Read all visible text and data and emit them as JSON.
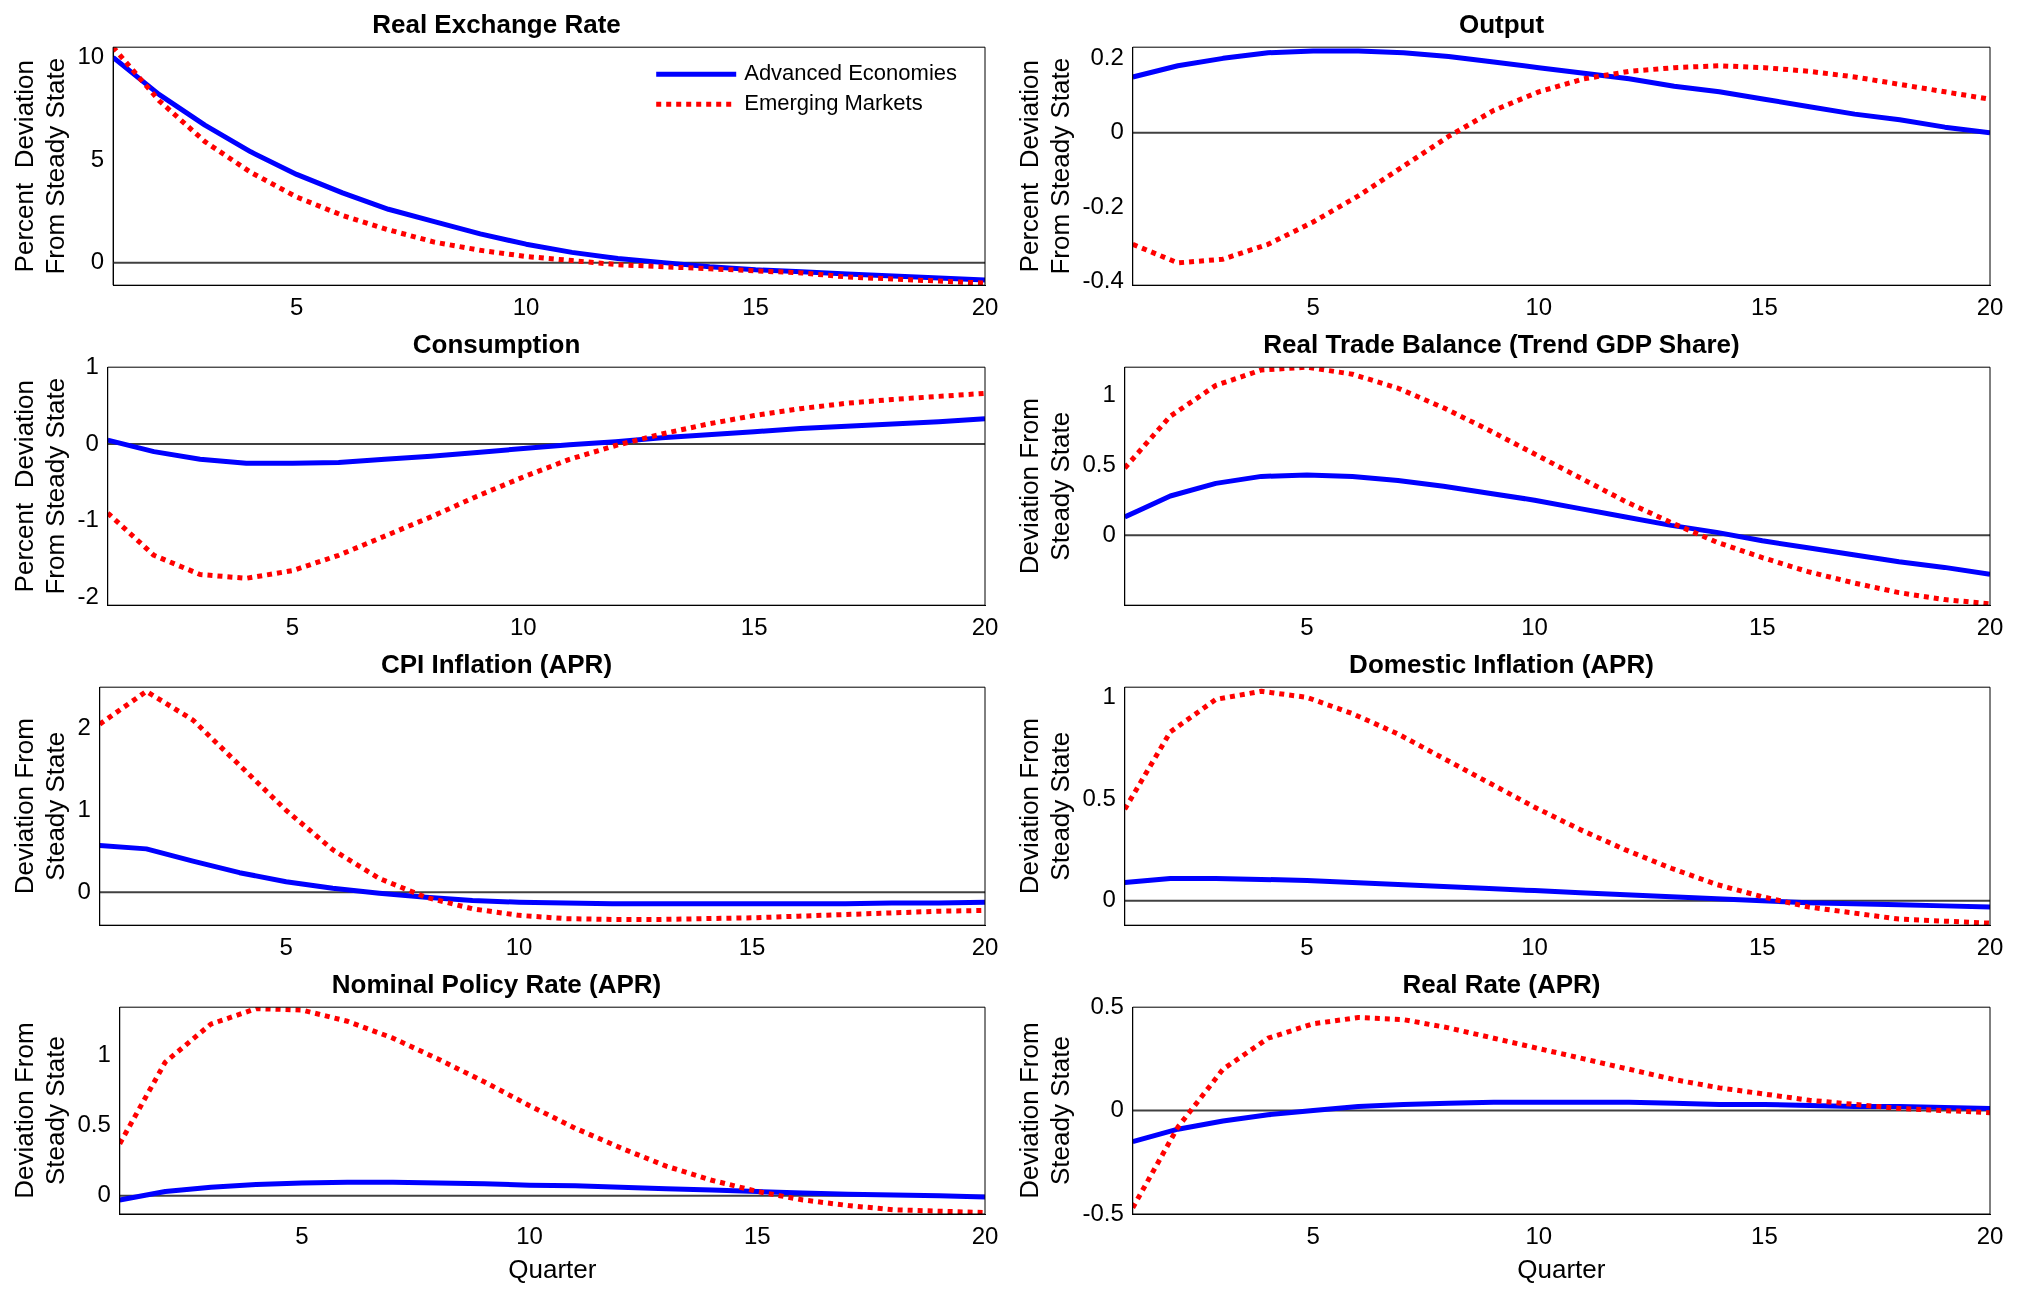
{
  "chart_data": [
    {
      "type": "line",
      "title": "Real Exchange Rate",
      "ylabel": "Percent  Deviation\nFrom Steady State",
      "x": [
        1,
        2,
        3,
        4,
        5,
        6,
        7,
        8,
        9,
        10,
        11,
        12,
        13,
        14,
        15,
        16,
        17,
        18,
        19,
        20
      ],
      "xlim": [
        1,
        20
      ],
      "xticks": [
        5,
        10,
        15,
        20
      ],
      "ylim": [
        -1.1,
        10.5
      ],
      "yticks": [
        0,
        5,
        10
      ],
      "legend": "top right",
      "ref_lines": [
        {
          "axis": "y",
          "value": 0,
          "color": "#404040"
        }
      ],
      "series": [
        {
          "name": "Advanced Economies",
          "color": "#0000ff",
          "line_style": "solid",
          "values": [
            10,
            8.2,
            6.7,
            5.4,
            4.3,
            3.4,
            2.6,
            2.0,
            1.4,
            0.9,
            0.5,
            0.2,
            0,
            -0.2,
            -0.35,
            -0.45,
            -0.55,
            -0.65,
            -0.75,
            -0.85
          ]
        },
        {
          "name": "Emerging Markets",
          "color": "#ff0000",
          "line_style": "dotted",
          "values": [
            10.5,
            7.9,
            5.9,
            4.4,
            3.2,
            2.3,
            1.6,
            1.0,
            0.6,
            0.3,
            0.1,
            -0.1,
            -0.2,
            -0.3,
            -0.4,
            -0.5,
            -0.7,
            -0.8,
            -0.9,
            -1.0
          ]
        }
      ]
    },
    {
      "type": "line",
      "title": "Output",
      "ylabel": "Percent  Deviation\nFrom Steady State",
      "x": [
        1,
        2,
        3,
        4,
        5,
        6,
        7,
        8,
        9,
        10,
        11,
        12,
        13,
        14,
        15,
        16,
        17,
        18,
        19,
        20
      ],
      "xlim": [
        1,
        20
      ],
      "xticks": [
        5,
        10,
        15,
        20
      ],
      "ylim": [
        -0.41,
        0.23
      ],
      "yticks": [
        -0.4,
        -0.2,
        0,
        0.2
      ],
      "ref_lines": [
        {
          "axis": "y",
          "value": 0,
          "color": "#404040"
        }
      ],
      "series": [
        {
          "color": "#0000ff",
          "line_style": "solid",
          "values": [
            0.15,
            0.18,
            0.2,
            0.215,
            0.22,
            0.22,
            0.215,
            0.205,
            0.19,
            0.175,
            0.16,
            0.145,
            0.125,
            0.11,
            0.09,
            0.07,
            0.05,
            0.035,
            0.015,
            0
          ]
        },
        {
          "color": "#ff0000",
          "line_style": "dotted",
          "values": [
            -0.3,
            -0.35,
            -0.34,
            -0.3,
            -0.24,
            -0.17,
            -0.09,
            -0.01,
            0.06,
            0.11,
            0.145,
            0.165,
            0.175,
            0.18,
            0.175,
            0.165,
            0.15,
            0.13,
            0.11,
            0.09
          ]
        }
      ]
    },
    {
      "type": "line",
      "title": "Consumption",
      "ylabel": "Percent  Deviation\nFrom Steady State",
      "x": [
        1,
        2,
        3,
        4,
        5,
        6,
        7,
        8,
        9,
        10,
        11,
        12,
        13,
        14,
        15,
        16,
        17,
        18,
        19,
        20
      ],
      "xlim": [
        1,
        20
      ],
      "xticks": [
        5,
        10,
        15,
        20
      ],
      "ylim": [
        -2.1,
        1
      ],
      "yticks": [
        -2,
        -1,
        0,
        1
      ],
      "ref_lines": [
        {
          "axis": "y",
          "value": 0,
          "color": "#404040"
        }
      ],
      "series": [
        {
          "color": "#0000ff",
          "line_style": "solid",
          "values": [
            0.05,
            -0.1,
            -0.2,
            -0.25,
            -0.25,
            -0.24,
            -0.2,
            -0.16,
            -0.11,
            -0.06,
            -0.01,
            0.03,
            0.08,
            0.12,
            0.16,
            0.2,
            0.23,
            0.26,
            0.29,
            0.33
          ]
        },
        {
          "color": "#ff0000",
          "line_style": "dotted",
          "values": [
            -0.9,
            -1.45,
            -1.7,
            -1.75,
            -1.65,
            -1.45,
            -1.2,
            -0.95,
            -0.68,
            -0.43,
            -0.2,
            -0.02,
            0.13,
            0.26,
            0.37,
            0.46,
            0.53,
            0.58,
            0.62,
            0.66
          ]
        }
      ]
    },
    {
      "type": "line",
      "title": "Real Trade Balance (Trend GDP Share)",
      "ylabel": "Deviation From\nSteady State",
      "x": [
        1,
        2,
        3,
        4,
        5,
        6,
        7,
        8,
        9,
        10,
        11,
        12,
        13,
        14,
        15,
        16,
        17,
        18,
        19,
        20
      ],
      "xlim": [
        1,
        20
      ],
      "xticks": [
        5,
        10,
        15,
        20
      ],
      "ylim": [
        -0.5,
        1.2
      ],
      "yticks": [
        0,
        0.5,
        1
      ],
      "ref_lines": [
        {
          "axis": "y",
          "value": 0,
          "color": "#404040"
        }
      ],
      "series": [
        {
          "color": "#0000ff",
          "line_style": "solid",
          "values": [
            0.13,
            0.28,
            0.37,
            0.42,
            0.43,
            0.42,
            0.39,
            0.35,
            0.3,
            0.25,
            0.19,
            0.13,
            0.07,
            0.02,
            -0.04,
            -0.09,
            -0.14,
            -0.19,
            -0.23,
            -0.28
          ]
        },
        {
          "color": "#ff0000",
          "line_style": "dotted",
          "values": [
            0.48,
            0.85,
            1.07,
            1.18,
            1.2,
            1.15,
            1.05,
            0.91,
            0.75,
            0.58,
            0.41,
            0.24,
            0.09,
            -0.05,
            -0.16,
            -0.26,
            -0.34,
            -0.41,
            -0.46,
            -0.49
          ]
        }
      ]
    },
    {
      "type": "line",
      "title": "CPI Inflation (APR)",
      "ylabel": "Deviation From\nSteady State",
      "x": [
        1,
        2,
        3,
        4,
        5,
        6,
        7,
        8,
        9,
        10,
        11,
        12,
        13,
        14,
        15,
        16,
        17,
        18,
        19,
        20
      ],
      "xlim": [
        1,
        20
      ],
      "xticks": [
        5,
        10,
        15,
        20
      ],
      "ylim": [
        -0.4,
        2.5
      ],
      "yticks": [
        0,
        1,
        2
      ],
      "ref_lines": [
        {
          "axis": "y",
          "value": 0,
          "color": "#404040"
        }
      ],
      "series": [
        {
          "color": "#0000ff",
          "line_style": "solid",
          "values": [
            0.57,
            0.53,
            0.38,
            0.24,
            0.13,
            0.05,
            -0.01,
            -0.06,
            -0.1,
            -0.12,
            -0.13,
            -0.14,
            -0.14,
            -0.14,
            -0.14,
            -0.14,
            -0.14,
            -0.13,
            -0.13,
            -0.12
          ]
        },
        {
          "color": "#ff0000",
          "line_style": "dotted",
          "values": [
            2.05,
            2.45,
            2.1,
            1.55,
            1.0,
            0.52,
            0.17,
            -0.06,
            -0.2,
            -0.28,
            -0.32,
            -0.33,
            -0.33,
            -0.32,
            -0.31,
            -0.29,
            -0.27,
            -0.25,
            -0.23,
            -0.22
          ]
        }
      ]
    },
    {
      "type": "line",
      "title": "Domestic Inflation (APR)",
      "ylabel": "Deviation From\nSteady State",
      "x": [
        1,
        2,
        3,
        4,
        5,
        6,
        7,
        8,
        9,
        10,
        11,
        12,
        13,
        14,
        15,
        16,
        17,
        18,
        19,
        20
      ],
      "xlim": [
        1,
        20
      ],
      "xticks": [
        5,
        10,
        15,
        20
      ],
      "ylim": [
        -0.12,
        1.05
      ],
      "yticks": [
        0,
        0.5,
        1
      ],
      "ref_lines": [
        {
          "axis": "y",
          "value": 0,
          "color": "#404040"
        }
      ],
      "series": [
        {
          "color": "#0000ff",
          "line_style": "solid",
          "values": [
            0.09,
            0.11,
            0.11,
            0.105,
            0.1,
            0.09,
            0.08,
            0.07,
            0.06,
            0.05,
            0.04,
            0.03,
            0.02,
            0.01,
            0,
            -0.01,
            -0.015,
            -0.02,
            -0.025,
            -0.03
          ]
        },
        {
          "color": "#ff0000",
          "line_style": "dotted",
          "values": [
            0.45,
            0.83,
            0.99,
            1.03,
            1.0,
            0.92,
            0.82,
            0.7,
            0.58,
            0.46,
            0.35,
            0.25,
            0.16,
            0.08,
            0.02,
            -0.03,
            -0.06,
            -0.09,
            -0.1,
            -0.11
          ]
        }
      ]
    },
    {
      "type": "line",
      "title": "Nominal Policy Rate (APR)",
      "ylabel": "Deviation From\nSteady State",
      "xlabel": "Quarter",
      "x": [
        1,
        2,
        3,
        4,
        5,
        6,
        7,
        8,
        9,
        10,
        11,
        12,
        13,
        14,
        15,
        16,
        17,
        18,
        19,
        20
      ],
      "xlim": [
        1,
        20
      ],
      "xticks": [
        5,
        10,
        15,
        20
      ],
      "ylim": [
        -0.13,
        1.34
      ],
      "yticks": [
        0,
        0.5,
        1
      ],
      "ref_lines": [
        {
          "axis": "y",
          "value": 0,
          "color": "#404040"
        }
      ],
      "series": [
        {
          "color": "#0000ff",
          "line_style": "solid",
          "values": [
            -0.03,
            0.03,
            0.06,
            0.08,
            0.09,
            0.095,
            0.095,
            0.09,
            0.085,
            0.075,
            0.07,
            0.06,
            0.05,
            0.04,
            0.03,
            0.02,
            0.01,
            0.005,
            0,
            -0.01
          ]
        },
        {
          "color": "#ff0000",
          "line_style": "dotted",
          "values": [
            0.37,
            0.95,
            1.22,
            1.33,
            1.32,
            1.24,
            1.12,
            0.97,
            0.81,
            0.64,
            0.48,
            0.34,
            0.21,
            0.11,
            0.03,
            -0.03,
            -0.07,
            -0.1,
            -0.11,
            -0.12
          ]
        }
      ]
    },
    {
      "type": "line",
      "title": "Real Rate (APR)",
      "ylabel": "Deviation From\nSteady State",
      "xlabel": "Quarter",
      "x": [
        1,
        2,
        3,
        4,
        5,
        6,
        7,
        8,
        9,
        10,
        11,
        12,
        13,
        14,
        15,
        16,
        17,
        18,
        19,
        20
      ],
      "xlim": [
        1,
        20
      ],
      "xticks": [
        5,
        10,
        15,
        20
      ],
      "ylim": [
        -0.5,
        0.5
      ],
      "yticks": [
        -0.5,
        0,
        0.5
      ],
      "ref_lines": [
        {
          "axis": "y",
          "value": 0,
          "color": "#404040"
        }
      ],
      "series": [
        {
          "color": "#0000ff",
          "line_style": "solid",
          "values": [
            -0.15,
            -0.09,
            -0.05,
            -0.02,
            0,
            0.02,
            0.03,
            0.035,
            0.04,
            0.04,
            0.04,
            0.04,
            0.035,
            0.03,
            0.03,
            0.025,
            0.02,
            0.02,
            0.015,
            0.01
          ]
        },
        {
          "color": "#ff0000",
          "line_style": "dotted",
          "values": [
            -0.47,
            -0.08,
            0.2,
            0.35,
            0.42,
            0.45,
            0.44,
            0.4,
            0.35,
            0.3,
            0.25,
            0.2,
            0.15,
            0.11,
            0.08,
            0.05,
            0.03,
            0.01,
            0,
            -0.01
          ]
        }
      ]
    }
  ]
}
